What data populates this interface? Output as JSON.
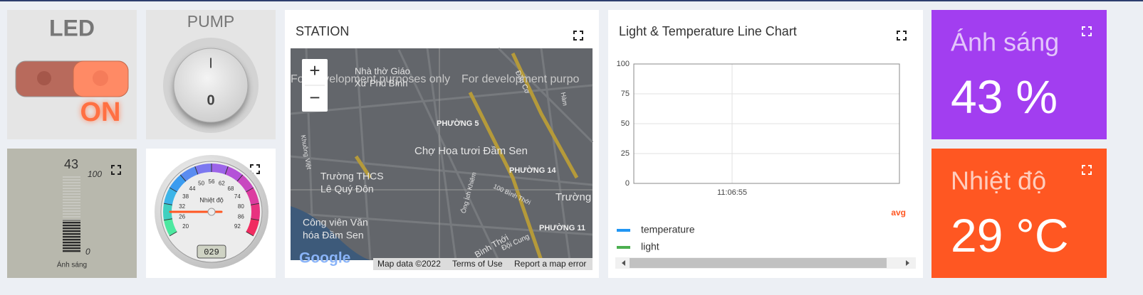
{
  "led": {
    "title": "LED",
    "state": "ON"
  },
  "pump": {
    "title": "PUMP",
    "on_label": "I",
    "off_label": "0"
  },
  "light_gauge": {
    "value": 43,
    "range": [
      0,
      100
    ],
    "label": "Ánh sáng"
  },
  "temp_gauge": {
    "label": "Nhiệt độ",
    "value": 29,
    "value_label": "029",
    "ticks": [
      20,
      26,
      32,
      38,
      44,
      50,
      56,
      62,
      68,
      74,
      80,
      86,
      92
    ]
  },
  "map": {
    "title": "STATION",
    "zoom_in": "+",
    "zoom_out": "−",
    "watermark": [
      "For development purposes only",
      "For development purpo"
    ],
    "places": [
      "Nhà thờ Giáo",
      "Xứ Phú Bình",
      "PHƯỜNG 5",
      "Chợ Hoa tươi Đầm Sen",
      "Trường THCS",
      "Lê Quý Đôn",
      "PHƯỜNG 14",
      "Công viên Văn",
      "hóa Đầm Sen",
      "PHƯỜNG 11",
      "Trường",
      "Bình Thới",
      "Đội Cung",
      "Ông Ích Khiêm",
      "100 Bình Thới",
      "Khuông Việt",
      "Đầu Cơ",
      "Hàm"
    ],
    "logo": "Google",
    "footer": [
      "Map data ©2022",
      "Terms of Use",
      "Report a map error"
    ]
  },
  "line_chart": {
    "title": "Light & Temperature Line Chart",
    "ylim": [
      0,
      100
    ],
    "yticks": [
      0,
      25,
      50,
      75,
      100
    ],
    "xticks": [
      "11:06:55"
    ],
    "aggregation": "avg",
    "series": [
      {
        "name": "temperature",
        "color": "#2196f3"
      },
      {
        "name": "light",
        "color": "#4caf50"
      }
    ]
  },
  "cards": [
    {
      "title": "Ánh sáng",
      "value": 43,
      "unit": "%",
      "color": "#a23ef0"
    },
    {
      "title": "Nhiệt độ",
      "value": 29,
      "unit": "°C",
      "color": "#ff5722"
    }
  ]
}
